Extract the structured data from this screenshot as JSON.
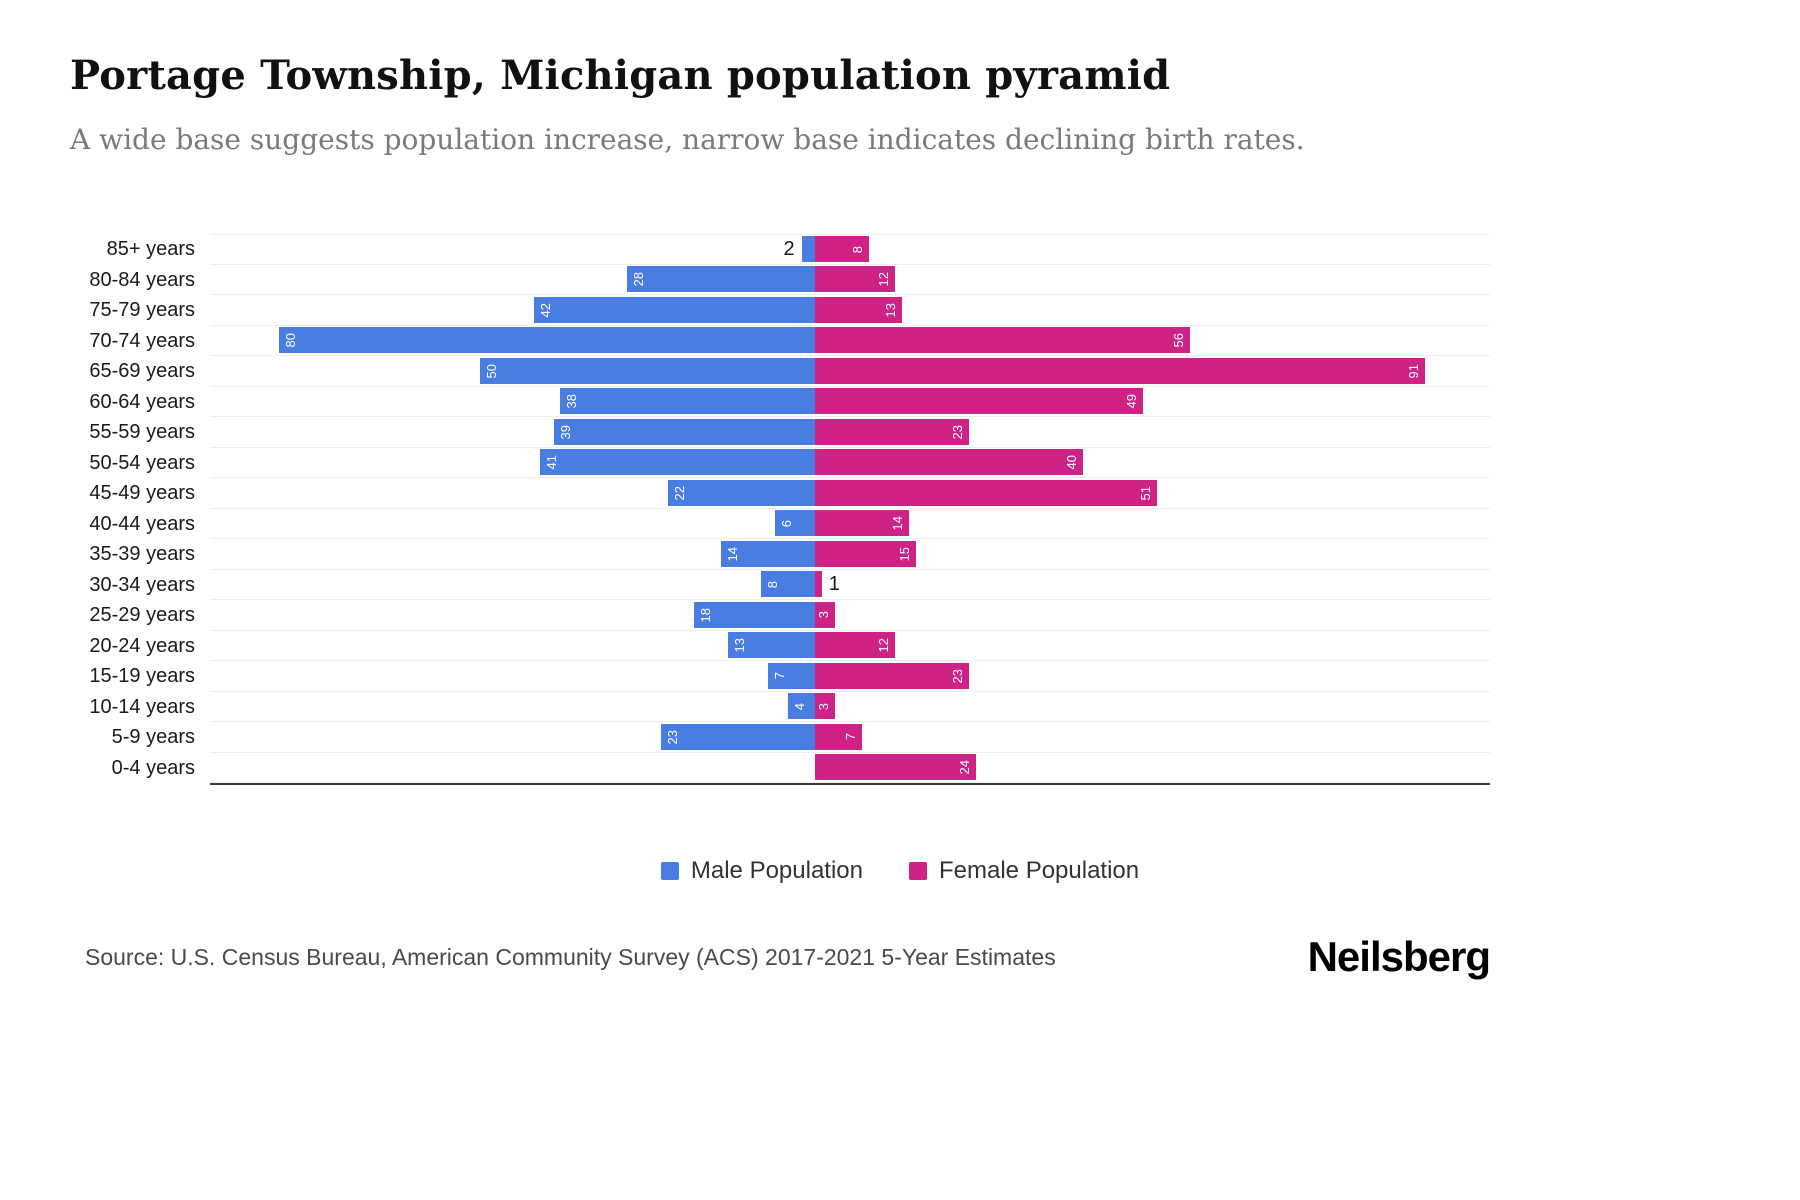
{
  "header": {
    "title": "Portage Township, Michigan population pyramid",
    "subtitle": "A wide base suggests population increase, narrow base indicates declining birth rates."
  },
  "legend": {
    "male": "Male Population",
    "female": "Female Population"
  },
  "footer": {
    "source": "Source: U.S. Census Bureau, American Community Survey (ACS) 2017-2021 5-Year Estimates",
    "logo": "Neilsberg"
  },
  "chart_data": {
    "type": "bar",
    "subtype": "population-pyramid",
    "orientation": "horizontal",
    "title": "Portage Township, Michigan population pyramid",
    "categories": [
      "85+ years",
      "80-84 years",
      "75-79 years",
      "70-74 years",
      "65-69 years",
      "60-64 years",
      "55-59 years",
      "50-54 years",
      "45-49 years",
      "40-44 years",
      "35-39 years",
      "30-34 years",
      "25-29 years",
      "20-24 years",
      "15-19 years",
      "10-14 years",
      "5-9 years",
      "0-4 years"
    ],
    "series": [
      {
        "name": "Male Population",
        "color": "#4A7DE2",
        "values": [
          2,
          28,
          42,
          80,
          50,
          38,
          39,
          41,
          22,
          6,
          14,
          8,
          18,
          13,
          7,
          4,
          23,
          0
        ]
      },
      {
        "name": "Female Population",
        "color": "#CE2286",
        "values": [
          8,
          12,
          13,
          56,
          91,
          49,
          23,
          40,
          51,
          14,
          15,
          1,
          3,
          12,
          23,
          3,
          7,
          24
        ]
      }
    ],
    "xlim_each_side": [
      0,
      100
    ],
    "grid": "horizontal-light",
    "legend_position": "bottom-center"
  }
}
